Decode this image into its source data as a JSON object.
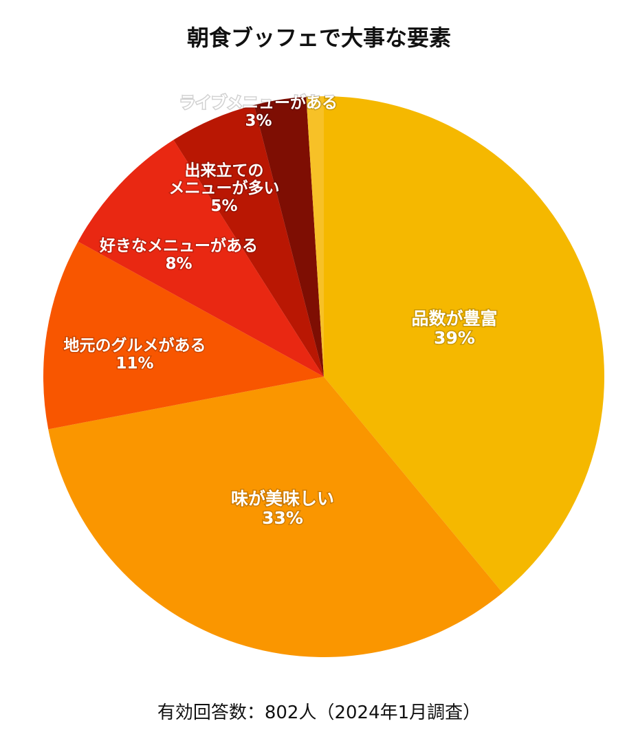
{
  "chart_data": {
    "type": "pie",
    "title": "朝食ブッフェで大事な要素",
    "footnote": "有効回答数：802人（2024年1月調査）",
    "legend": "none",
    "slices": [
      {
        "label_lines": [
          "品数が豊富"
        ],
        "value": 39,
        "value_text": "39%",
        "color": "#F5B800"
      },
      {
        "label_lines": [
          "味が美味しい"
        ],
        "value": 33,
        "value_text": "33%",
        "color": "#FA9600"
      },
      {
        "label_lines": [
          "地元のグルメがある"
        ],
        "value": 11,
        "value_text": "11%",
        "color": "#F85600"
      },
      {
        "label_lines": [
          "好きなメニューがある"
        ],
        "value": 8,
        "value_text": "8%",
        "color": "#E92812"
      },
      {
        "label_lines": [
          "出来立ての",
          "メニューが多い"
        ],
        "value": 5,
        "value_text": "5%",
        "color": "#B91703"
      },
      {
        "label_lines": [
          "ライブメニューがある"
        ],
        "value": 3,
        "value_text": "3%",
        "color": "#7E0E03"
      },
      {
        "label_lines": [],
        "value": 1,
        "value_text": "",
        "color": "#F7C127"
      }
    ]
  }
}
